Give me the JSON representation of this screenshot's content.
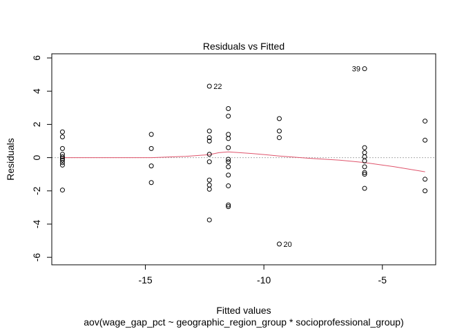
{
  "chart_data": {
    "type": "scatter",
    "title": "Residuals vs Fitted",
    "xlabel": "Fitted values",
    "sublabel": "aov(wage_gap_pct ~ geographic_region_group * socioprofessional_group)",
    "ylabel": "Residuals",
    "xlim": [
      -18.95,
      -2.75
    ],
    "ylim": [
      -6.45,
      6.25
    ],
    "xticks": [
      -15,
      -10,
      -5
    ],
    "xtick_labels": [
      "-15",
      "-10",
      "-5"
    ],
    "yticks": [
      -6,
      -4,
      -2,
      0,
      2,
      4,
      6
    ],
    "ytick_labels": [
      "-6",
      "-4",
      "-2",
      "0",
      "2",
      "4",
      "6"
    ],
    "grid": false,
    "colors": {
      "smooth": "#DF536B",
      "zero_line": "#aaaaaa",
      "points": "#000000"
    },
    "points": [
      {
        "x": -18.5,
        "y": 1.55
      },
      {
        "x": -18.5,
        "y": 1.25
      },
      {
        "x": -18.5,
        "y": 0.55
      },
      {
        "x": -18.5,
        "y": 0.2
      },
      {
        "x": -18.5,
        "y": 0.05
      },
      {
        "x": -18.5,
        "y": -0.05
      },
      {
        "x": -18.5,
        "y": -0.15
      },
      {
        "x": -18.5,
        "y": -0.3
      },
      {
        "x": -18.5,
        "y": -0.45
      },
      {
        "x": -18.5,
        "y": -1.95
      },
      {
        "x": -14.75,
        "y": 1.4
      },
      {
        "x": -14.75,
        "y": 0.55
      },
      {
        "x": -14.75,
        "y": -0.5
      },
      {
        "x": -14.75,
        "y": -1.5
      },
      {
        "x": -12.3,
        "y": 4.3,
        "label": "22"
      },
      {
        "x": -12.3,
        "y": 1.6
      },
      {
        "x": -12.3,
        "y": 1.2
      },
      {
        "x": -12.3,
        "y": 1.0
      },
      {
        "x": -12.3,
        "y": 0.2
      },
      {
        "x": -12.3,
        "y": -0.25
      },
      {
        "x": -12.3,
        "y": -1.35
      },
      {
        "x": -12.3,
        "y": -1.65
      },
      {
        "x": -12.3,
        "y": -1.9
      },
      {
        "x": -12.3,
        "y": -3.75
      },
      {
        "x": -11.5,
        "y": 2.95
      },
      {
        "x": -11.5,
        "y": 2.5
      },
      {
        "x": -11.5,
        "y": 1.4
      },
      {
        "x": -11.5,
        "y": 1.15
      },
      {
        "x": -11.5,
        "y": 0.6
      },
      {
        "x": -11.5,
        "y": -0.1
      },
      {
        "x": -11.5,
        "y": -0.25
      },
      {
        "x": -11.5,
        "y": -0.55
      },
      {
        "x": -11.5,
        "y": -1.05
      },
      {
        "x": -11.5,
        "y": -1.7
      },
      {
        "x": -11.5,
        "y": -2.85
      },
      {
        "x": -11.5,
        "y": -2.95
      },
      {
        "x": -9.35,
        "y": 2.35
      },
      {
        "x": -9.35,
        "y": 1.6
      },
      {
        "x": -9.35,
        "y": 1.2
      },
      {
        "x": -9.35,
        "y": -5.2,
        "label": "20"
      },
      {
        "x": -5.75,
        "y": 5.35,
        "label": "39"
      },
      {
        "x": -5.75,
        "y": 0.6
      },
      {
        "x": -5.75,
        "y": 0.3
      },
      {
        "x": -5.75,
        "y": 0.05
      },
      {
        "x": -5.75,
        "y": -0.2
      },
      {
        "x": -5.75,
        "y": -0.55
      },
      {
        "x": -5.75,
        "y": -0.9
      },
      {
        "x": -5.75,
        "y": -1.0
      },
      {
        "x": -5.75,
        "y": -1.85
      },
      {
        "x": -3.2,
        "y": 2.2
      },
      {
        "x": -3.2,
        "y": 1.05
      },
      {
        "x": -3.2,
        "y": -1.3
      },
      {
        "x": -3.2,
        "y": -2.0
      }
    ],
    "smooth": [
      {
        "x": -18.5,
        "y": 0.0
      },
      {
        "x": -16.5,
        "y": 0.0
      },
      {
        "x": -14.75,
        "y": 0.0
      },
      {
        "x": -13.3,
        "y": 0.08
      },
      {
        "x": -12.3,
        "y": 0.18
      },
      {
        "x": -11.9,
        "y": 0.3
      },
      {
        "x": -11.5,
        "y": 0.35
      },
      {
        "x": -10.5,
        "y": 0.25
      },
      {
        "x": -9.35,
        "y": 0.1
      },
      {
        "x": -8.0,
        "y": -0.05
      },
      {
        "x": -6.8,
        "y": -0.15
      },
      {
        "x": -5.75,
        "y": -0.3
      },
      {
        "x": -4.5,
        "y": -0.55
      },
      {
        "x": -3.2,
        "y": -0.85
      }
    ]
  }
}
